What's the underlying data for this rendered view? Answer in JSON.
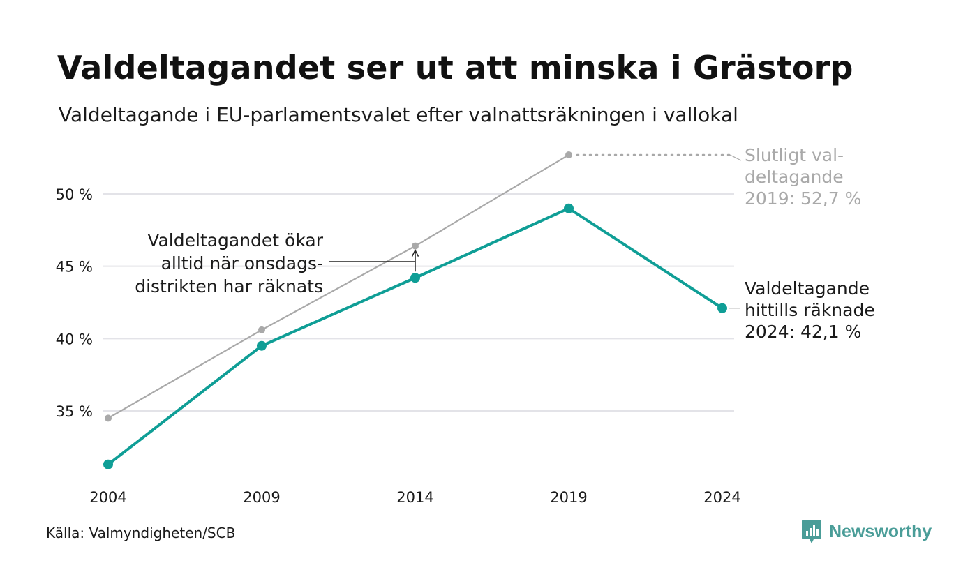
{
  "header": {
    "title": "Valdeltagandet ser ut att minska i Grästorp",
    "subtitle": "Valdeltagande i EU-parlamentsvalet efter valnattsräkningen i vallokal"
  },
  "footer": {
    "source": "Källa: Valmyndigheten/SCB",
    "brand": "Newsworthy"
  },
  "colors": {
    "accent": "#0f9e96",
    "final": "#a9a9a9",
    "grid": "#e3e3e8",
    "text": "#1a1a1a",
    "brand": "#4a9d98"
  },
  "chart_data": {
    "type": "line",
    "x": [
      2004,
      2009,
      2014,
      2019,
      2024
    ],
    "xticks": [
      "2004",
      "2009",
      "2014",
      "2019",
      "2024"
    ],
    "yticks": [
      35,
      40,
      45,
      50
    ],
    "ytick_labels": [
      "35 %",
      "40 %",
      "45 %",
      "50 %"
    ],
    "ylim": [
      30.5,
      54
    ],
    "grid": true,
    "series": [
      {
        "key": "final",
        "values": [
          34.5,
          40.6,
          46.4,
          52.7,
          null
        ]
      },
      {
        "key": "election_night",
        "values": [
          31.3,
          39.5,
          44.2,
          49.0,
          42.1
        ]
      }
    ],
    "annotations": {
      "final_2019": [
        "Slutligt val-",
        "deltagande",
        "2019: 52,7 %"
      ],
      "counted_2024": [
        "Valdeltagande",
        "hittills räknade",
        "2024: 42,1 %"
      ],
      "wednesday": [
        "Valdeltagandet ökar",
        "alltid när onsdags-",
        "distrikten har räknats"
      ]
    }
  }
}
